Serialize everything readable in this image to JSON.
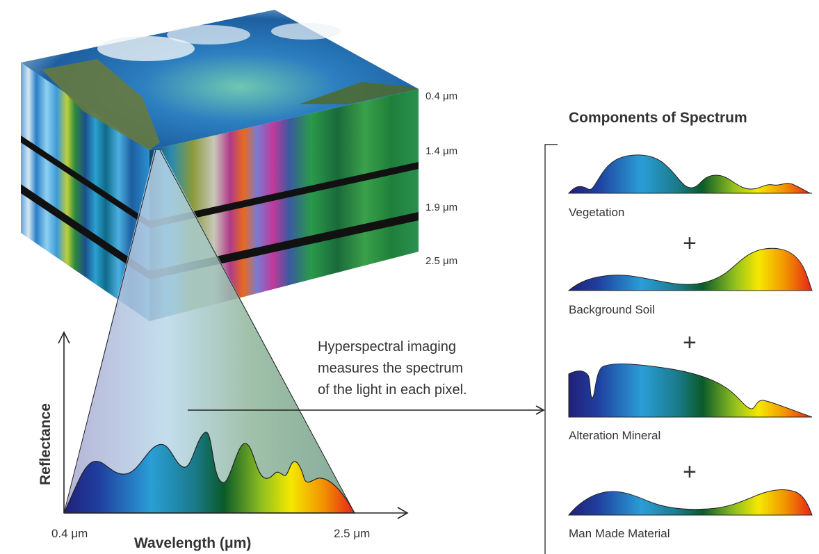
{
  "cube": {
    "bands": [
      "0.4 μm",
      "1.4 μm",
      "1.9 μm",
      "2.5 μm"
    ]
  },
  "graph": {
    "ylabel": "Reflectance",
    "xlabel": "Wavelength (μm)",
    "x_start": "0.4 μm",
    "x_end": "2.5 μm"
  },
  "caption": {
    "lines": [
      "Hyperspectral imaging",
      "measures the spectrum",
      "of the light in each pixel."
    ]
  },
  "components": {
    "title": "Components of Spectrum",
    "items": [
      "Vegetation",
      "Background Soil",
      "Alteration Mineral",
      "Man Made Material"
    ],
    "operator": "+"
  },
  "colors": {
    "spectrum": [
      "#20207a",
      "#1f4fb0",
      "#2aa0d8",
      "#0d7a5a",
      "#0a5a2a",
      "#9ec21c",
      "#f5e800",
      "#f29400",
      "#e52318"
    ],
    "axis": "#222222",
    "cone_fill": "#9fb9b0"
  }
}
